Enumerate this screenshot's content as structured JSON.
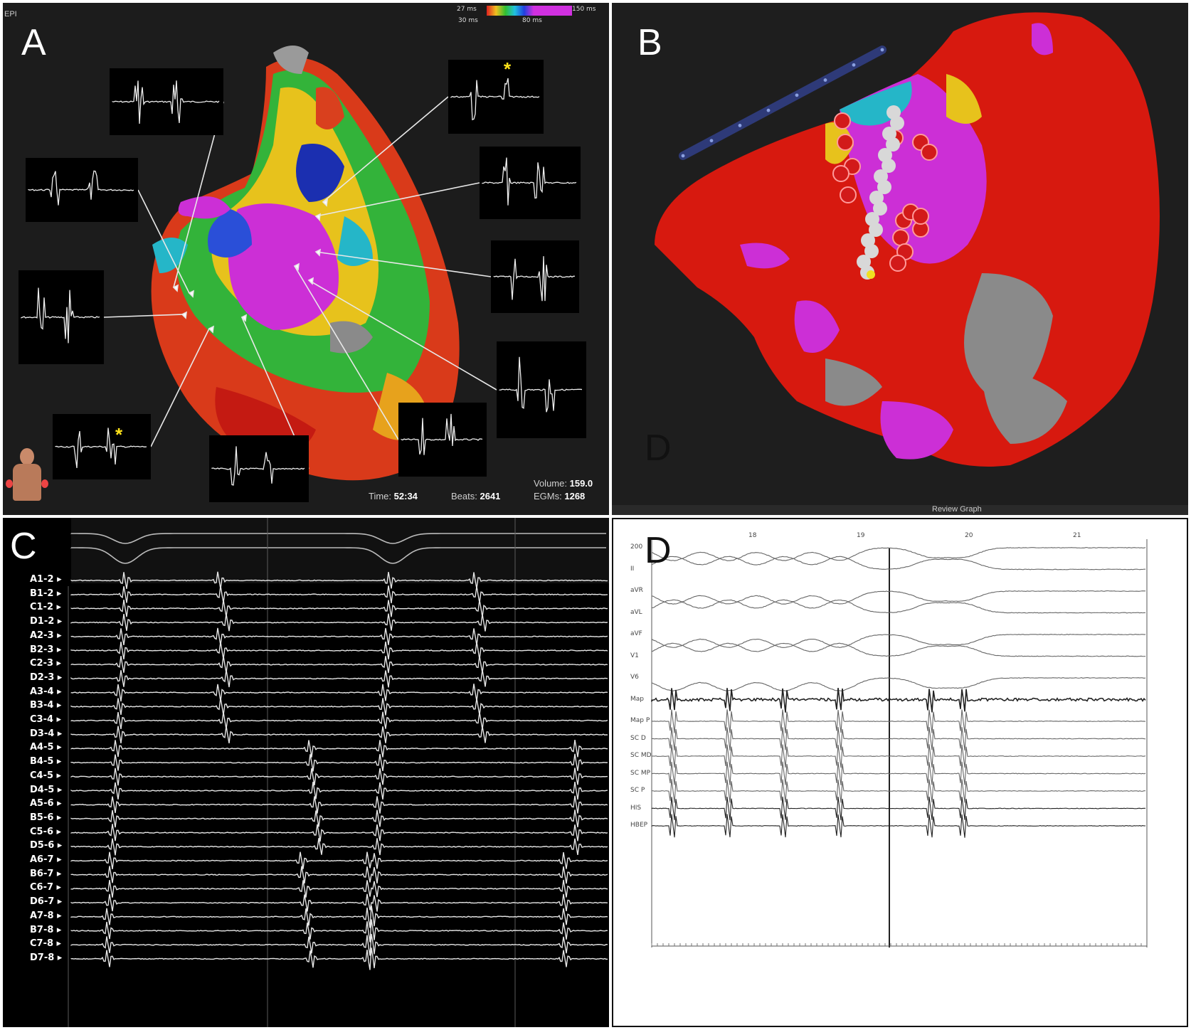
{
  "panel_a": {
    "letter": "A",
    "corner_tag": "EPI",
    "colorbar": {
      "min_label": "27 ms",
      "min_sub": "30 ms",
      "max_label": "150 ms",
      "mid_label": "80 ms"
    },
    "status": {
      "time_label": "Time:",
      "time": "52:34",
      "beats_label": "Beats:",
      "beats": "2641",
      "volume_label": "Volume:",
      "volume": "159.0",
      "egms_label": "EGMs:",
      "egms": "1268"
    },
    "asterisk": "*"
  },
  "panel_b": {
    "letter": "B",
    "inner_letter": "D",
    "footer": "Review Graph"
  },
  "panel_c": {
    "letter": "C",
    "channels": [
      "A1-2",
      "B1-2",
      "C1-2",
      "D1-2",
      "A2-3",
      "B2-3",
      "C2-3",
      "D2-3",
      "A3-4",
      "B3-4",
      "C3-4",
      "D3-4",
      "A4-5",
      "B4-5",
      "C4-5",
      "D4-5",
      "A5-6",
      "B5-6",
      "C5-6",
      "D5-6",
      "A6-7",
      "B6-7",
      "C6-7",
      "D6-7",
      "A7-8",
      "B7-8",
      "C7-8",
      "D7-8"
    ]
  },
  "panel_d": {
    "letter": "D",
    "beat_numbers": [
      "18",
      "19",
      "20",
      "21"
    ],
    "leads": [
      "200",
      "II",
      "aVR",
      "aVL",
      "aVF",
      "V1",
      "V6",
      "Map",
      "Map P",
      "SC D",
      "SC MD",
      "SC MP",
      "SC P",
      "HIS",
      "HBEP"
    ]
  }
}
